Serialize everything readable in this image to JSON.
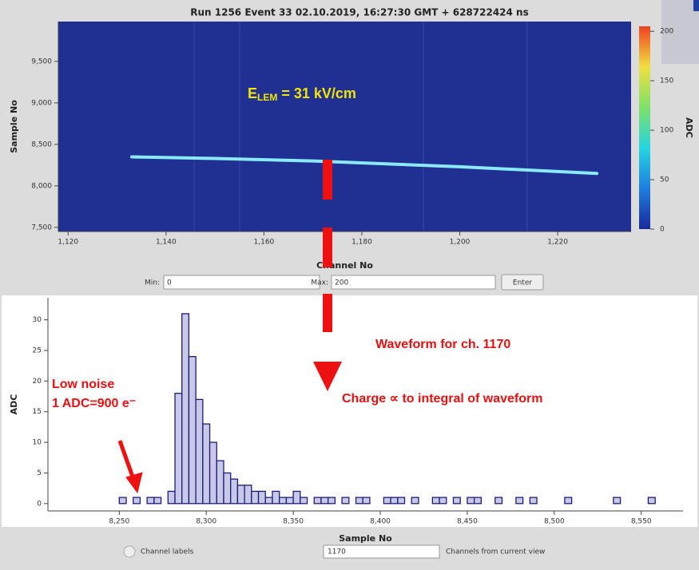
{
  "chart_data": [
    {
      "type": "heatmap",
      "title": "Run 1256 Event 33 02.10.2019, 16:27:30 GMT + 628722424 ns",
      "x_label": "Channel No",
      "y_label": "Sample No",
      "xlim": [
        1118,
        1235
      ],
      "ylim": [
        7450,
        9980
      ],
      "xticks": [
        {
          "value": 1120,
          "label": "1,120"
        },
        {
          "value": 1140,
          "label": "1,140"
        },
        {
          "value": 1160,
          "label": "1,160"
        },
        {
          "value": 1180,
          "label": "1,180"
        },
        {
          "value": 1200,
          "label": "1,200"
        },
        {
          "value": 1220,
          "label": "1,220"
        }
      ],
      "yticks": [
        {
          "value": 7500,
          "label": "7,500"
        },
        {
          "value": 8000,
          "label": "8,000"
        },
        {
          "value": 8500,
          "label": "8,500"
        },
        {
          "value": 9000,
          "label": "9,000"
        },
        {
          "value": 9500,
          "label": "9,500"
        }
      ],
      "series": [
        {
          "color": "#8be9ff",
          "x": [
            1133,
            1150,
            1170,
            1200,
            1228
          ],
          "values": [
            8350,
            8330,
            8300,
            8230,
            8150
          ]
        }
      ],
      "colorbar": {
        "label": "ADC",
        "lim": [
          0,
          205
        ],
        "ticks": [
          0,
          50,
          100,
          150,
          200
        ]
      }
    },
    {
      "type": "histogram",
      "x_label": "Sample No",
      "y_label": "ADC",
      "color": "#1c1c78",
      "xlim": [
        8209,
        8574
      ],
      "ylim": [
        -1.2,
        33.6
      ],
      "xticks": [
        {
          "value": 8250,
          "label": "8,250"
        },
        {
          "value": 8300,
          "label": "8,300"
        },
        {
          "value": 8350,
          "label": "8,350"
        },
        {
          "value": 8400,
          "label": "8,400"
        },
        {
          "value": 8450,
          "label": "8,450"
        },
        {
          "value": 8500,
          "label": "8,500"
        },
        {
          "value": 8550,
          "label": "8,550"
        }
      ],
      "yticks": [
        0,
        5,
        10,
        15,
        20,
        25,
        30
      ],
      "bins": [
        8210,
        8214,
        8218,
        8222,
        8226,
        8230,
        8234,
        8238,
        8242,
        8246,
        8250,
        8254,
        8258,
        8262,
        8266,
        8270,
        8274,
        8278,
        8282,
        8286,
        8290,
        8294,
        8298,
        8302,
        8306,
        8310,
        8314,
        8318,
        8322,
        8326,
        8330,
        8334,
        8338,
        8342,
        8346,
        8350,
        8354,
        8358,
        8362,
        8366,
        8370,
        8374,
        8378,
        8382,
        8386,
        8390,
        8394,
        8398,
        8402,
        8406,
        8410,
        8414,
        8418,
        8422,
        8426,
        8430,
        8434,
        8438,
        8442,
        8446,
        8450,
        8454,
        8458,
        8462,
        8466,
        8470,
        8474,
        8478,
        8482,
        8486,
        8490,
        8494,
        8498,
        8502,
        8506,
        8510,
        8514,
        8518,
        8522,
        8526,
        8530,
        8534,
        8538,
        8542,
        8546,
        8550,
        8554,
        8558,
        8562,
        8566,
        8570
      ],
      "values": [
        0,
        0,
        0,
        0,
        0,
        0,
        0,
        0,
        0,
        0,
        1,
        0,
        1,
        0,
        1,
        1,
        0,
        2,
        18,
        31,
        24,
        17,
        13,
        10,
        7,
        5,
        4,
        3,
        3,
        2,
        2,
        1,
        2,
        1,
        1,
        2,
        1,
        0,
        1,
        1,
        1,
        0,
        1,
        0,
        1,
        1,
        0,
        0,
        1,
        1,
        1,
        0,
        1,
        0,
        0,
        1,
        1,
        0,
        1,
        0,
        1,
        1,
        0,
        0,
        1,
        0,
        0,
        1,
        0,
        1,
        0,
        0,
        0,
        0,
        1,
        0,
        0,
        0,
        0,
        0,
        0,
        1,
        0,
        0,
        0,
        0,
        1,
        0,
        0,
        0
      ]
    }
  ],
  "controls": {
    "min_label": "Min:",
    "min_value": 0,
    "max_label": "Max:",
    "max_value": 200,
    "enter": "Enter",
    "channel_labels": "Channel labels",
    "channel": 1170,
    "channels_view": "Channels from current view"
  },
  "annotations": {
    "field": {
      "main": "E",
      "subscript": "LEM",
      "rest": " = 31 kV/cm"
    },
    "waveform": "Waveform for ch. 1170",
    "noise": [
      "Low noise",
      "1 ADC=900 e⁻"
    ],
    "charge": "Charge ∝ to integral of waveform"
  }
}
